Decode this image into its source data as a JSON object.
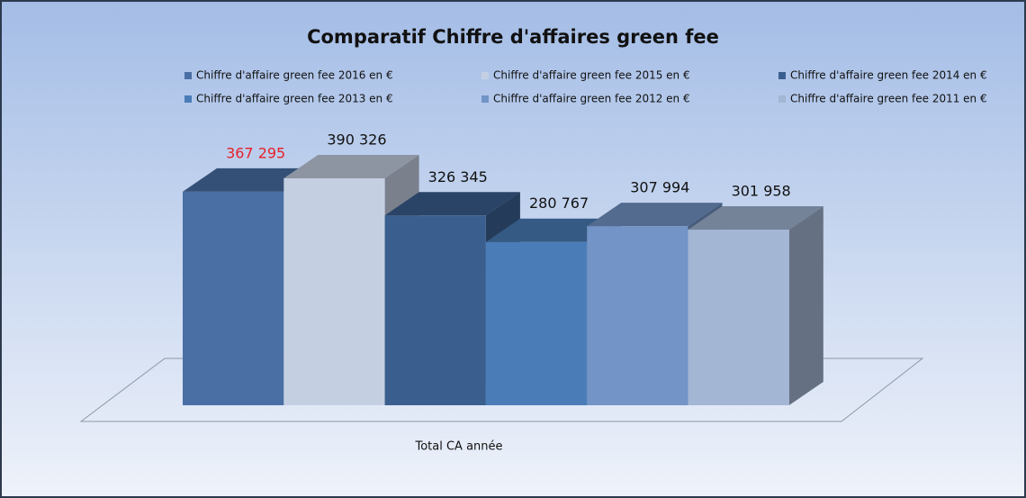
{
  "chart_data": {
    "type": "bar3d",
    "title": "Comparatif Chiffre d'affaires green fee",
    "categories": [
      "Total CA année"
    ],
    "series": [
      {
        "name": "Chiffre d'affaire green fee 2016 en €",
        "color": "#4a6fa5",
        "values": [
          367295
        ],
        "value_labels": [
          "367 295"
        ],
        "label_color": "#e8202a"
      },
      {
        "name": "Chiffre d'affaire green fee 2015 en €",
        "color": "#c4cfe2",
        "values": [
          390326
        ],
        "value_labels": [
          "390 326"
        ],
        "label_color": "#111111"
      },
      {
        "name": "Chiffre d'affaire green fee 2014 en €",
        "color": "#3a5f8f",
        "values": [
          326345
        ],
        "value_labels": [
          "326 345"
        ],
        "label_color": "#111111"
      },
      {
        "name": "Chiffre d'affaire green fee 2013 en €",
        "color": "#4a7db8",
        "values": [
          280767
        ],
        "value_labels": [
          "280 767"
        ],
        "label_color": "#111111"
      },
      {
        "name": "Chiffre d'affaire green fee 2012 en €",
        "color": "#7294c6",
        "values": [
          307994
        ],
        "value_labels": [
          "307 994"
        ],
        "label_color": "#111111"
      },
      {
        "name": "Chiffre d'affaire green fee 2011 en €",
        "color": "#a3b6d4",
        "values": [
          301958
        ],
        "value_labels": [
          "301 958"
        ],
        "label_color": "#111111"
      }
    ]
  }
}
